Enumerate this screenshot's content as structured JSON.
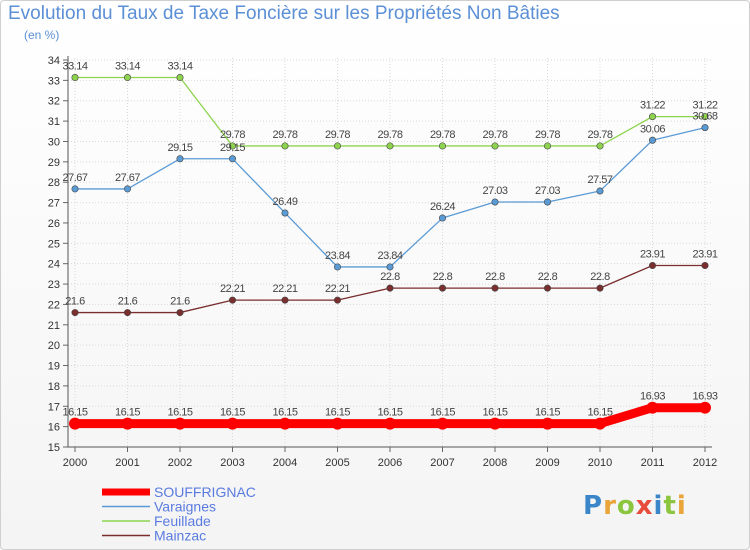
{
  "title": "Evolution du Taux de Taxe Foncière sur les Propriétés Non Bâties",
  "unit_label": "(en %)",
  "logo": {
    "letters": [
      {
        "ch": "P",
        "color": "#3b86c8"
      },
      {
        "ch": "r",
        "color": "#e9a43a"
      },
      {
        "ch": "o",
        "color": "#8cc63f"
      },
      {
        "ch": "x",
        "color": "#e74c3c"
      },
      {
        "ch": "i",
        "color": "#3b86c8"
      },
      {
        "ch": "t",
        "color": "#8cc63f"
      },
      {
        "ch": "i",
        "color": "#e9a43a"
      }
    ]
  },
  "chart_data": {
    "type": "line",
    "title": "Evolution du Taux de Taxe Foncière sur les Propriétés Non Bâties",
    "ylabel": "(en %)",
    "xlabel": "",
    "x": [
      "2000",
      "2001",
      "2002",
      "2003",
      "2004",
      "2005",
      "2006",
      "2007",
      "2008",
      "2009",
      "2010",
      "2011",
      "2012"
    ],
    "ylim": [
      15,
      34
    ],
    "yticks": [
      15,
      16,
      17,
      18,
      19,
      20,
      21,
      22,
      23,
      24,
      25,
      26,
      27,
      28,
      29,
      30,
      31,
      32,
      33,
      34
    ],
    "legend_position": "bottom-left",
    "series": [
      {
        "name": "SOUFFRIGNAC",
        "color": "#ff0000",
        "emphasis": true,
        "values": [
          16.15,
          16.15,
          16.15,
          16.15,
          16.15,
          16.15,
          16.15,
          16.15,
          16.15,
          16.15,
          16.15,
          16.93,
          16.93
        ],
        "labels": [
          "16.15",
          "16.15",
          "16.15",
          "16.15",
          "16.15",
          "16.15",
          "16.15",
          "16.15",
          "16.15",
          "16.15",
          "16.15",
          "16.93",
          "16.93"
        ]
      },
      {
        "name": "Varaignes",
        "color": "#5b9bd5",
        "emphasis": false,
        "values": [
          27.67,
          27.67,
          29.15,
          29.15,
          26.49,
          23.84,
          23.84,
          26.24,
          27.03,
          27.03,
          27.57,
          30.06,
          30.68
        ],
        "labels": [
          "27.67",
          "27.67",
          "29.15",
          "29.15",
          "26.49",
          "23.84",
          "23.84",
          "26.24",
          "27.03",
          "27.03",
          "27.57",
          "30.06",
          "30.68"
        ]
      },
      {
        "name": "Feuillade",
        "color": "#8ed34e",
        "emphasis": false,
        "values": [
          33.14,
          33.14,
          33.14,
          29.78,
          29.78,
          29.78,
          29.78,
          29.78,
          29.78,
          29.78,
          29.78,
          31.22,
          31.22
        ],
        "labels": [
          "33.14",
          "33.14",
          "33.14",
          "29.78",
          "29.78",
          "29.78",
          "29.78",
          "29.78",
          "29.78",
          "29.78",
          "29.78",
          "31.22",
          "31.22"
        ]
      },
      {
        "name": "Mainzac",
        "color": "#7a2e2e",
        "emphasis": false,
        "values": [
          21.6,
          21.6,
          21.6,
          22.21,
          22.21,
          22.21,
          22.8,
          22.8,
          22.8,
          22.8,
          22.8,
          23.91,
          23.91
        ],
        "labels": [
          "21.6",
          "21.6",
          "21.6",
          "22.21",
          "22.21",
          "22.21",
          "22.8",
          "22.8",
          "22.8",
          "22.8",
          "22.8",
          "23.91",
          "23.91"
        ]
      }
    ]
  }
}
